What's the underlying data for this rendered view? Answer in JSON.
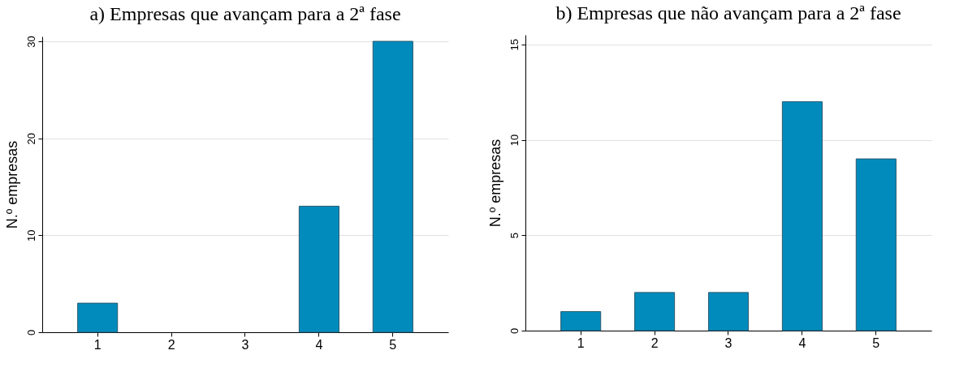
{
  "chart_data": [
    {
      "type": "bar",
      "title": "a) Empresas que avançam para a 2ª fase",
      "ylabel": "N.º empresas",
      "categories": [
        "1",
        "2",
        "3",
        "4",
        "5"
      ],
      "values": [
        3,
        0,
        0,
        13,
        30
      ],
      "color": "#008bbc",
      "ylim": [
        0,
        30.5
      ],
      "yticks": [
        0,
        10,
        20,
        30
      ],
      "grid": "y"
    },
    {
      "type": "bar",
      "title": "b) Empresas que não avançam para a 2ª fase",
      "ylabel": "N.º empresas",
      "categories": [
        "1",
        "2",
        "3",
        "4",
        "5"
      ],
      "values": [
        1,
        2,
        2,
        12,
        9
      ],
      "color": "#008bbc",
      "ylim": [
        0,
        15.5
      ],
      "yticks": [
        0,
        5,
        10,
        15
      ],
      "grid": "y"
    }
  ]
}
